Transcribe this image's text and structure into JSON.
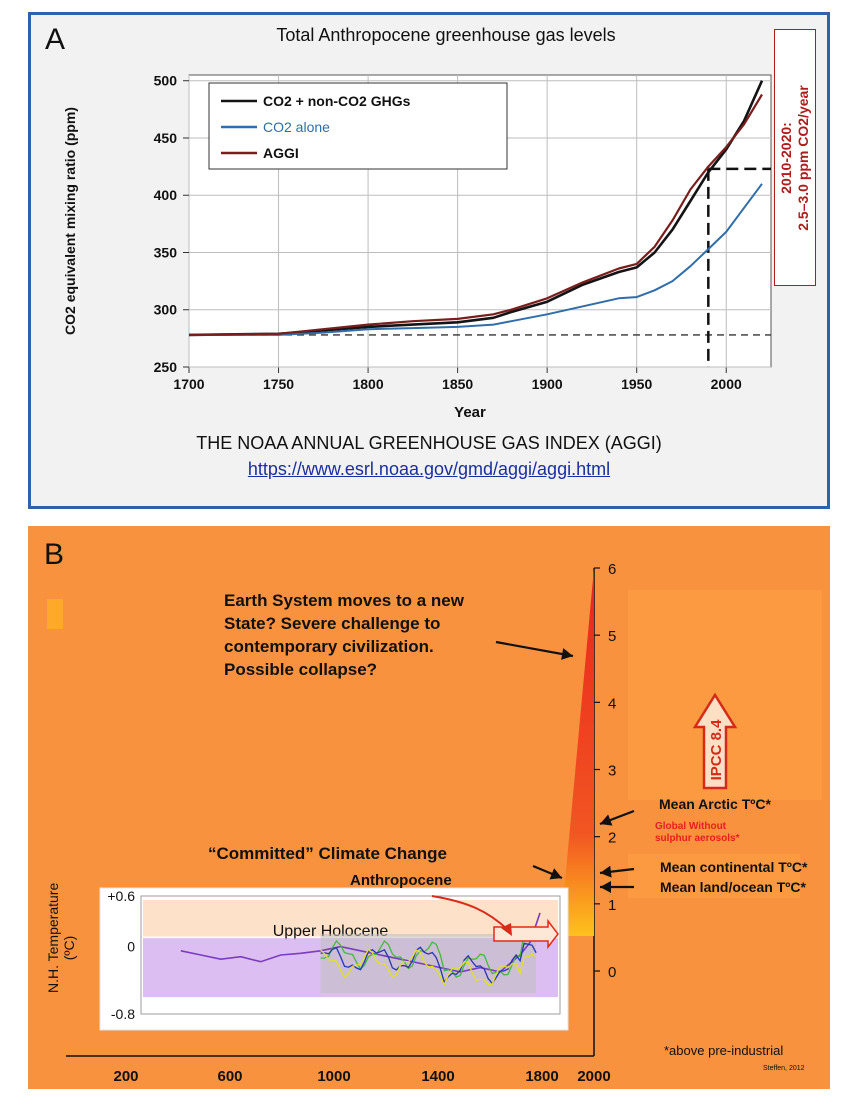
{
  "panel_a": {
    "letter": "A",
    "index_name": "THE NOAA ANNUAL GREENHOUSE GAS INDEX (AGGI)",
    "url": "https://www.esrl.noaa.gov/gmd/aggi/aggi.html",
    "side_box": [
      "2010-2020:",
      "2.5–3.0 ppm CO2/year"
    ],
    "colors": {
      "co2e": "#141414",
      "co2": "#2f6eaa",
      "aggi": "#7a1d1d",
      "border": "#2f62ad",
      "box_text": "#b01c1c"
    }
  },
  "panel_b": {
    "letter": "B",
    "statement": [
      "Earth System moves to a new",
      "State? Severe challenge to",
      "contemporary civilization.",
      "Possible collapse?"
    ],
    "committed": "“Committed” Climate Change",
    "anthropocene": "Anthropocene",
    "upper_holocene": "Upper Holocene",
    "ipcc": "IPCC 8.4",
    "arctic": "Mean Arctic TºC*",
    "global_no_aerosols": [
      "Global Without",
      "sulphur aerosols*"
    ],
    "continental": "Mean continental TºC*",
    "land_ocean": "Mean land/ocean TºC*",
    "inset_ylabel": "N.H. Temperature",
    "inset_yunit": "(ºC)",
    "footnote": "*above pre-industrial",
    "credit": "Steffen, 2012",
    "colors": {
      "background": "#f8923e",
      "wedge_top": "#e8241c",
      "wedge_bottom": "#ffc21c",
      "ipcc_arrow": "#d42a1a",
      "inset_band": "#d2a8ee"
    }
  },
  "chart_data": [
    {
      "type": "line",
      "title": "Total Anthropocene greenhouse gas levels",
      "xlabel": "Year",
      "ylabel": "CO2 equivalent mixing ratio (ppm)",
      "xlim": [
        1700,
        2025
      ],
      "ylim": [
        250,
        505
      ],
      "xticks": [
        1700,
        1750,
        1800,
        1850,
        1900,
        1950,
        2000
      ],
      "yticks": [
        250,
        300,
        350,
        400,
        450,
        500
      ],
      "grid": true,
      "legend_position": "top-left",
      "series": [
        {
          "name": "CO2 + non-CO2 GHGs",
          "x": [
            1700,
            1750,
            1775,
            1800,
            1825,
            1850,
            1870,
            1880,
            1900,
            1920,
            1940,
            1950,
            1960,
            1970,
            1980,
            1990,
            2000,
            2010,
            2020
          ],
          "y": [
            278,
            279,
            282,
            285,
            287,
            289,
            293,
            298,
            307,
            322,
            333,
            337,
            350,
            370,
            395,
            420,
            440,
            465,
            500
          ]
        },
        {
          "name": "CO2 alone",
          "x": [
            1700,
            1750,
            1775,
            1800,
            1825,
            1850,
            1870,
            1880,
            1900,
            1920,
            1940,
            1950,
            1960,
            1970,
            1980,
            1990,
            2000,
            2010,
            2020
          ],
          "y": [
            278,
            278,
            280,
            283,
            284,
            285,
            287,
            290,
            296,
            303,
            310,
            311,
            317,
            325,
            338,
            353,
            368,
            389,
            410
          ]
        },
        {
          "name": "AGGI",
          "x": [
            1700,
            1750,
            1775,
            1800,
            1825,
            1850,
            1870,
            1880,
            1900,
            1920,
            1940,
            1950,
            1960,
            1970,
            1980,
            1990,
            2000,
            2010,
            2020
          ],
          "y": [
            278,
            279,
            283,
            287,
            290,
            292,
            296,
            300,
            310,
            324,
            336,
            340,
            355,
            378,
            405,
            425,
            442,
            462,
            488
          ]
        }
      ],
      "reference_lines": {
        "baseline_ppm": 278,
        "marker_year": 1990,
        "marker_ppm": 423
      }
    },
    {
      "type": "line",
      "title": "",
      "xlabel": "",
      "ylabel": "N.H. Temperature (ºC)",
      "xticks": [
        200,
        600,
        1000,
        1400,
        1800,
        2000
      ],
      "xlim": [
        0,
        2100
      ],
      "ylim": [
        -0.8,
        0.6
      ],
      "yticks": [
        0.6,
        0,
        -0.8
      ],
      "ytick_labels": [
        "+0.6",
        "0",
        "-0.8"
      ],
      "right_axis": {
        "ticks": [
          0,
          1,
          2,
          3,
          4,
          5,
          6
        ],
        "range": [
          -0.8,
          6
        ]
      },
      "series": [
        {
          "x": [
            200,
            300,
            400,
            500,
            600,
            700,
            800,
            900,
            1000,
            1100,
            1200,
            1300,
            1400,
            1500,
            1600,
            1700,
            1800,
            1850,
            1900,
            1950,
            2000
          ],
          "y": [
            -0.05,
            -0.1,
            -0.15,
            -0.12,
            -0.18,
            -0.1,
            -0.08,
            -0.05,
            0.0,
            -0.05,
            -0.1,
            -0.15,
            -0.2,
            -0.25,
            -0.3,
            -0.25,
            -0.3,
            -0.2,
            -0.1,
            0.05,
            0.4
          ]
        }
      ]
    }
  ]
}
